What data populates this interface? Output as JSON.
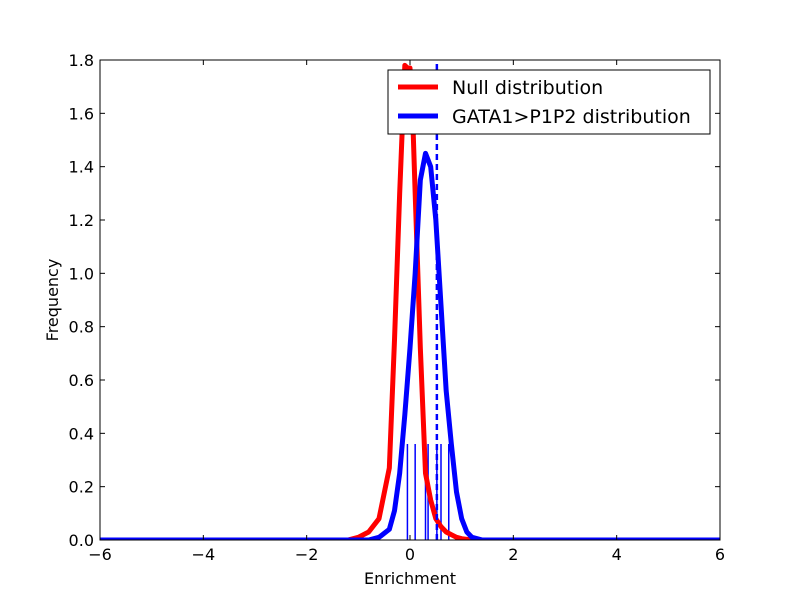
{
  "chart_data": {
    "type": "line",
    "xlabel": "Enrichment",
    "ylabel": "Frequency",
    "xlim": [
      -6,
      6
    ],
    "ylim": [
      0,
      1.8
    ],
    "xticks": [
      -6,
      -4,
      -2,
      0,
      2,
      4,
      6
    ],
    "xtick_labels": [
      "−6",
      "−4",
      "−2",
      "0",
      "2",
      "4",
      "6"
    ],
    "yticks": [
      0.0,
      0.2,
      0.4,
      0.6,
      0.8,
      1.0,
      1.2,
      1.4,
      1.6,
      1.8
    ],
    "ytick_labels": [
      "0.0",
      "0.2",
      "0.4",
      "0.6",
      "0.8",
      "1.0",
      "1.2",
      "1.4",
      "1.6",
      "1.8"
    ],
    "grid": false,
    "legend_position": "top-right",
    "series": [
      {
        "name": "Null distribution",
        "color": "#ff0000",
        "x": [
          -6,
          -1.2,
          -1.0,
          -0.8,
          -0.6,
          -0.4,
          -0.3,
          -0.2,
          -0.1,
          -0.05,
          0.0,
          0.05,
          0.1,
          0.2,
          0.3,
          0.4,
          0.5,
          0.6,
          0.7,
          0.8,
          0.9,
          1.0,
          1.2,
          6
        ],
        "y": [
          0.0,
          0.0,
          0.01,
          0.03,
          0.08,
          0.27,
          0.75,
          1.3,
          1.78,
          1.77,
          1.77,
          1.6,
          1.3,
          0.72,
          0.25,
          0.15,
          0.08,
          0.05,
          0.03,
          0.02,
          0.01,
          0.005,
          0.0,
          0.0
        ]
      },
      {
        "name": "GATA1>P1P2 distribution",
        "color": "#0000ff",
        "x": [
          -6,
          -0.8,
          -0.6,
          -0.4,
          -0.3,
          -0.2,
          -0.1,
          0.0,
          0.1,
          0.2,
          0.3,
          0.4,
          0.5,
          0.6,
          0.7,
          0.8,
          0.9,
          1.0,
          1.1,
          1.2,
          1.4,
          6
        ],
        "y": [
          0.0,
          0.0,
          0.01,
          0.04,
          0.11,
          0.25,
          0.47,
          0.72,
          1.0,
          1.35,
          1.45,
          1.4,
          1.2,
          0.88,
          0.56,
          0.36,
          0.18,
          0.08,
          0.03,
          0.01,
          0.0,
          0.0
        ]
      }
    ],
    "vertical_line": {
      "x": 0.52,
      "style": "dashed",
      "color": "#0000ff"
    },
    "rug": {
      "color": "#0000ff",
      "height": 0.36,
      "x": [
        -0.05,
        0.1,
        0.3,
        0.35,
        0.52,
        0.6,
        0.75
      ]
    }
  }
}
